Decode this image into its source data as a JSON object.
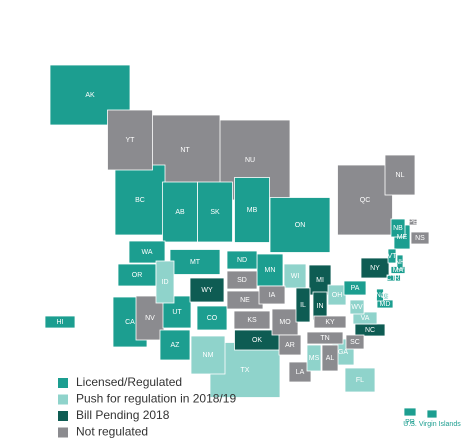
{
  "legend": [
    {
      "label": "Licensed/Regulated",
      "color": "#1c9e90",
      "regions": [
        "AK",
        "BC",
        "AB",
        "SK",
        "MB",
        "ON",
        "NB",
        "WA",
        "OR",
        "CA",
        "MT",
        "ND",
        "MN",
        "UT",
        "AZ",
        "CO",
        "PA",
        "VT",
        "NH",
        "ME",
        "MA",
        "CT",
        "RI",
        "NJ",
        "MD",
        "HI",
        "PR",
        "U.S. Virgin Islands"
      ]
    },
    {
      "label": "Push for regulation in 2018/19",
      "color": "#8fd3cb",
      "regions": [
        "ID",
        "WI",
        "OH",
        "WV",
        "VA",
        "DE",
        "GA",
        "FL",
        "MS",
        "TX",
        "NM"
      ]
    },
    {
      "label": "Bill Pending 2018",
      "color": "#0e5c53",
      "regions": [
        "WY",
        "MI",
        "IL",
        "IN",
        "NY",
        "NC",
        "OK"
      ]
    },
    {
      "label": "Not regulated",
      "color": "#8b8b8f",
      "regions": [
        "YT",
        "NT",
        "NU",
        "QC",
        "NL",
        "NS",
        "PE",
        "NV",
        "SD",
        "NE",
        "KS",
        "IA",
        "MO",
        "AR",
        "LA",
        "AL",
        "TN",
        "KY",
        "SC"
      ]
    }
  ]
}
